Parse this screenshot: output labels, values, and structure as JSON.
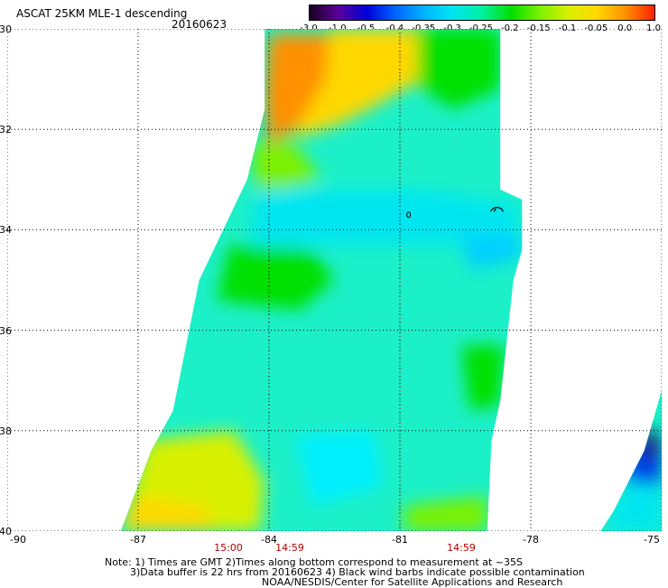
{
  "title": "ASCAT 25KM MLE-1 descending",
  "date": "20160623",
  "colorbar": {
    "ticks": [
      "-3.0",
      "-1.0",
      "-0.5",
      "-0.4",
      "-0.35",
      "-0.3",
      "-0.25",
      "-0.2",
      "-0.15",
      "-0.1",
      "-0.05",
      "0.0",
      "1.0"
    ],
    "colors": [
      "#1a0020",
      "#5a009a",
      "#0000d8",
      "#0066ff",
      "#00b4ff",
      "#00e6f0",
      "#00f0a0",
      "#00e000",
      "#7cf000",
      "#d8f000",
      "#ffd800",
      "#ff9000",
      "#ff2000"
    ]
  },
  "y_axis": [
    "-30",
    "-32",
    "-34",
    "-36",
    "-38",
    "-40"
  ],
  "x_axis": [
    "-90",
    "-87",
    "-84",
    "-81",
    "-78",
    "-75"
  ],
  "times": [
    "15:00",
    "14:59",
    "14:59"
  ],
  "notes": {
    "line1": "Note: 1) Times are GMT 2)Times along bottom correspond to measurement at ~35S",
    "line2": "3)Data buffer is 22 hrs from 20160623 4) Black wind barbs indicate possible contamination",
    "line3": "NOAA/NESDIS/Center for Satellite Applications and Research"
  },
  "map": {
    "lon_range": [
      -90,
      -75
    ],
    "lat_range": [
      -30,
      -40
    ],
    "swaths": [
      {
        "name": "main-swath",
        "polygon": [
          [
            -84.1,
            -30
          ],
          [
            -78.7,
            -30
          ],
          [
            -78.7,
            -33.2
          ],
          [
            -78.2,
            -33.4
          ],
          [
            -78.2,
            -34.4
          ],
          [
            -78.4,
            -35.0
          ],
          [
            -78.7,
            -37.4
          ],
          [
            -78.9,
            -38.2
          ],
          [
            -79.0,
            -40
          ],
          [
            -87.4,
            -40
          ],
          [
            -86.7,
            -38.4
          ],
          [
            -86.2,
            -37.6
          ],
          [
            -85.6,
            -35.0
          ],
          [
            -84.5,
            -33.0
          ],
          [
            -84.1,
            -31.6
          ]
        ]
      },
      {
        "name": "east-swath",
        "polygon": [
          [
            -75,
            -37.2
          ],
          [
            -75,
            -40
          ],
          [
            -76.4,
            -40
          ],
          [
            -76.1,
            -39.6
          ],
          [
            -75.4,
            -38.4
          ]
        ]
      }
    ],
    "regions": [
      {
        "color": "#ff9000",
        "poly": [
          [
            -84.0,
            -30.1
          ],
          [
            -82.6,
            -30.1
          ],
          [
            -82.7,
            -31.0
          ],
          [
            -83.2,
            -31.8
          ],
          [
            -84.0,
            -32.4
          ],
          [
            -84.1,
            -31.4
          ]
        ]
      },
      {
        "color": "#ffd800",
        "poly": [
          [
            -82.6,
            -30
          ],
          [
            -80.4,
            -30
          ],
          [
            -80.5,
            -31.0
          ],
          [
            -81.5,
            -31.5
          ],
          [
            -82.4,
            -31.9
          ],
          [
            -83.5,
            -32.2
          ],
          [
            -82.7,
            -31.0
          ]
        ]
      },
      {
        "color": "#00e000",
        "poly": [
          [
            -80.6,
            -30
          ],
          [
            -78.7,
            -30
          ],
          [
            -78.7,
            -31.2
          ],
          [
            -79.8,
            -31.6
          ],
          [
            -80.6,
            -31.1
          ]
        ]
      },
      {
        "color": "#7cf000",
        "poly": [
          [
            -84.4,
            -32.3
          ],
          [
            -83.4,
            -32.3
          ],
          [
            -82.8,
            -33.0
          ],
          [
            -84.3,
            -33.3
          ]
        ]
      },
      {
        "color": "#00e6f0",
        "poly": [
          [
            -84.3,
            -33.2
          ],
          [
            -80.5,
            -33.2
          ],
          [
            -78.3,
            -33.5
          ],
          [
            -78.3,
            -34.2
          ],
          [
            -79.8,
            -34.3
          ],
          [
            -84.4,
            -34.3
          ]
        ]
      },
      {
        "color": "#00e000",
        "poly": [
          [
            -84.9,
            -34.3
          ],
          [
            -83.0,
            -34.4
          ],
          [
            -82.5,
            -35.0
          ],
          [
            -83.3,
            -35.6
          ],
          [
            -85.2,
            -35.4
          ]
        ]
      },
      {
        "color": "#00d0ff",
        "poly": [
          [
            -79.6,
            -34.1
          ],
          [
            -78.2,
            -34.1
          ],
          [
            -78.3,
            -34.6
          ],
          [
            -79.4,
            -34.8
          ]
        ]
      },
      {
        "color": "#00e000",
        "poly": [
          [
            -79.6,
            -36.3
          ],
          [
            -78.6,
            -36.3
          ],
          [
            -78.7,
            -37.5
          ],
          [
            -79.4,
            -37.6
          ]
        ]
      },
      {
        "color": "#d8f000",
        "poly": [
          [
            -86.8,
            -38.2
          ],
          [
            -84.8,
            -38.0
          ],
          [
            -84.1,
            -39.0
          ],
          [
            -84.2,
            -40
          ],
          [
            -87.4,
            -40
          ]
        ]
      },
      {
        "color": "#ffd800",
        "poly": [
          [
            -87.1,
            -39.3
          ],
          [
            -85.5,
            -39.5
          ],
          [
            -85.2,
            -40
          ],
          [
            -87.4,
            -40
          ]
        ]
      },
      {
        "color": "#00f0ff",
        "poly": [
          [
            -83.4,
            -38.1
          ],
          [
            -81.6,
            -38.0
          ],
          [
            -81.4,
            -39.1
          ],
          [
            -83.0,
            -39.5
          ]
        ]
      },
      {
        "color": "#7cf000",
        "poly": [
          [
            -80.9,
            -39.5
          ],
          [
            -79.0,
            -39.3
          ],
          [
            -79.0,
            -40
          ],
          [
            -80.9,
            -40
          ]
        ]
      },
      {
        "color": "#00e6f0",
        "poly": [
          [
            -75.6,
            -38.6
          ],
          [
            -75,
            -38.6
          ],
          [
            -75,
            -40
          ],
          [
            -76.3,
            -40
          ]
        ]
      },
      {
        "color": "#0040e8",
        "poly": [
          [
            -75.6,
            -38.2
          ],
          [
            -75,
            -38.2
          ],
          [
            -75,
            -39.1
          ],
          [
            -75.9,
            -39.0
          ]
        ]
      },
      {
        "color": "#1a0040",
        "poly": [
          [
            -75.4,
            -38.0
          ],
          [
            -75.1,
            -38.0
          ],
          [
            -75.1,
            -38.5
          ],
          [
            -75.4,
            -38.6
          ]
        ]
      }
    ]
  }
}
